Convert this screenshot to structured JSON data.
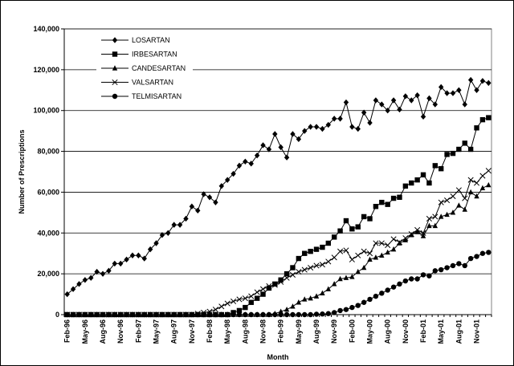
{
  "chart_data": {
    "type": "line",
    "x_label": "Month",
    "y_label": "Number of Prescriptions",
    "categories": [
      "Feb-96",
      null,
      null,
      "May-96",
      null,
      null,
      "Aug-96",
      null,
      null,
      "Nov-96",
      null,
      null,
      "Feb-97",
      null,
      null,
      "May-97",
      null,
      null,
      "Aug-97",
      null,
      null,
      "Nov-97",
      null,
      null,
      "Feb-98",
      null,
      null,
      "May-98",
      null,
      null,
      "Aug-98",
      null,
      null,
      "Nov-98",
      null,
      null,
      "Feb-99",
      null,
      null,
      "May-99",
      null,
      null,
      "Aug-99",
      null,
      null,
      "Nov-99",
      null,
      null,
      "Feb-00",
      null,
      null,
      "May-00",
      null,
      null,
      "Aug-00",
      null,
      null,
      "Nov-00",
      null,
      null,
      "Feb-01",
      null,
      null,
      "May-01",
      null,
      null,
      "Aug-01",
      null,
      null,
      "Nov-01",
      null,
      null
    ],
    "series": [
      {
        "name": "LOSARTAN",
        "color": "#000000",
        "marker": "diamond",
        "values": [
          10000,
          12500,
          15000,
          17000,
          18000,
          21000,
          20000,
          21500,
          25000,
          25000,
          27000,
          29000,
          29000,
          27500,
          32000,
          35000,
          39000,
          40000,
          44000,
          44000,
          47000,
          53000,
          51000,
          59000,
          57500,
          55000,
          63000,
          66000,
          69000,
          73000,
          75000,
          74000,
          78000,
          83000,
          81000,
          88500,
          82000,
          77000,
          88500,
          86000,
          90000,
          92000,
          92000,
          91000,
          93000,
          96000,
          96000,
          104000,
          92000,
          91000,
          99000,
          94000,
          105000,
          103000,
          100000,
          105000,
          100500,
          107000,
          105000,
          107500,
          97000,
          106000,
          103000,
          111500,
          108500,
          108500,
          110000,
          103000,
          115000,
          110000,
          114500,
          113500
        ]
      },
      {
        "name": "IRBESARTAN",
        "color": "#000000",
        "marker": "square",
        "values": [
          0,
          0,
          0,
          0,
          0,
          0,
          0,
          0,
          0,
          0,
          0,
          0,
          0,
          0,
          0,
          0,
          0,
          0,
          0,
          0,
          0,
          0,
          0,
          0,
          0,
          0,
          0,
          0,
          1000,
          2000,
          3500,
          6000,
          8000,
          10000,
          13000,
          15000,
          17000,
          20000,
          23000,
          27500,
          30000,
          31000,
          32000,
          33000,
          35000,
          38000,
          41000,
          46000,
          42000,
          43000,
          48000,
          47000,
          53000,
          55000,
          54000,
          57000,
          57500,
          63000,
          64500,
          66000,
          68500,
          64500,
          73000,
          71500,
          78500,
          79000,
          81000,
          84000,
          81000,
          91500,
          95500,
          96500
        ]
      },
      {
        "name": "CANDESARTAN",
        "color": "#000000",
        "marker": "triangle",
        "values": [
          0,
          0,
          0,
          0,
          0,
          0,
          0,
          0,
          0,
          0,
          0,
          0,
          0,
          0,
          0,
          0,
          0,
          0,
          0,
          0,
          0,
          0,
          0,
          0,
          0,
          0,
          0,
          0,
          0,
          0,
          0,
          0,
          0,
          0,
          0,
          500,
          1500,
          2500,
          4000,
          6000,
          7500,
          8000,
          9000,
          10500,
          12500,
          15000,
          17500,
          18000,
          18500,
          21000,
          23000,
          27000,
          28000,
          29000,
          30500,
          32000,
          35000,
          36500,
          39000,
          40500,
          38500,
          43500,
          43500,
          48000,
          49000,
          50000,
          53500,
          51500,
          60000,
          58000,
          62000,
          63500
        ]
      },
      {
        "name": "VALSARTAN",
        "color": "#000000",
        "marker": "x",
        "values": [
          0,
          0,
          0,
          0,
          0,
          0,
          0,
          0,
          0,
          0,
          0,
          0,
          0,
          0,
          0,
          0,
          0,
          0,
          0,
          0,
          0,
          0,
          500,
          1000,
          1500,
          2500,
          4000,
          5500,
          6500,
          7500,
          8000,
          9000,
          11000,
          12500,
          14000,
          14500,
          16000,
          18000,
          19500,
          21000,
          22000,
          23000,
          24000,
          24500,
          26000,
          28000,
          31000,
          31500,
          27000,
          29000,
          31000,
          30000,
          35000,
          35000,
          34000,
          37000,
          35500,
          37500,
          39500,
          41500,
          40000,
          47000,
          48000,
          55000,
          56000,
          58000,
          61000,
          57000,
          66000,
          64500,
          68000,
          70500
        ]
      },
      {
        "name": "TELMISARTAN",
        "color": "#000000",
        "marker": "circle",
        "values": [
          0,
          0,
          0,
          0,
          0,
          0,
          0,
          0,
          0,
          0,
          0,
          0,
          0,
          0,
          0,
          0,
          0,
          0,
          0,
          0,
          0,
          0,
          0,
          0,
          0,
          0,
          0,
          0,
          0,
          0,
          0,
          0,
          0,
          0,
          0,
          0,
          0,
          0,
          0,
          0,
          0,
          0,
          200,
          300,
          500,
          1000,
          2000,
          2500,
          3500,
          4500,
          6000,
          7500,
          9000,
          10500,
          12000,
          13500,
          15000,
          16500,
          17500,
          17500,
          19500,
          19000,
          21500,
          22000,
          23000,
          24000,
          25000,
          24000,
          27500,
          28500,
          30000,
          30500
        ]
      }
    ],
    "ylim": [
      0,
      140000
    ],
    "yticks": [
      0,
      {
        "value": 20000,
        "label": "20,000"
      },
      {
        "value": 40000,
        "label": "40,000"
      },
      {
        "value": 60000,
        "label": "60,000"
      },
      {
        "value": 80000,
        "label": "80,000"
      },
      {
        "value": 100000,
        "label": "100,000"
      },
      {
        "value": 120000,
        "label": "120,000"
      },
      {
        "value": 140000,
        "label": "140,000"
      }
    ],
    "grid": true,
    "legend": "upper left"
  }
}
